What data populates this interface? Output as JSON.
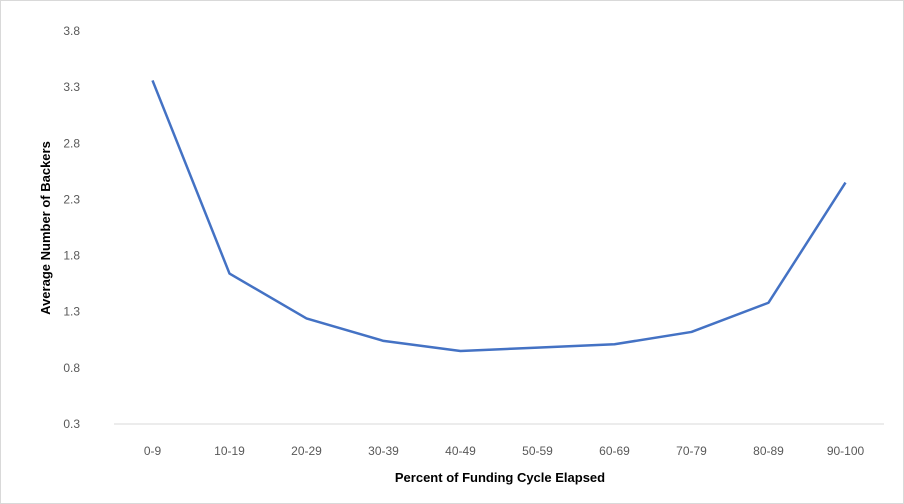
{
  "chart_data": {
    "type": "line",
    "title": "",
    "xlabel": "Percent of Funding Cycle Elapsed",
    "ylabel": "Average Number of Backers",
    "categories": [
      "0-9",
      "10-19",
      "20-29",
      "30-39",
      "40-49",
      "50-59",
      "60-69",
      "70-79",
      "80-89",
      "90-100"
    ],
    "series": [
      {
        "values": [
          3.36,
          1.64,
          1.24,
          1.04,
          0.95,
          0.98,
          1.01,
          1.12,
          1.38,
          2.45
        ]
      }
    ],
    "ylim": [
      0.3,
      3.8
    ],
    "yticks": [
      "0.3",
      "0.8",
      "1.3",
      "1.8",
      "2.3",
      "2.8",
      "3.3",
      "3.8"
    ],
    "grid": false,
    "legend": "none",
    "line_color": "#4472C4"
  }
}
